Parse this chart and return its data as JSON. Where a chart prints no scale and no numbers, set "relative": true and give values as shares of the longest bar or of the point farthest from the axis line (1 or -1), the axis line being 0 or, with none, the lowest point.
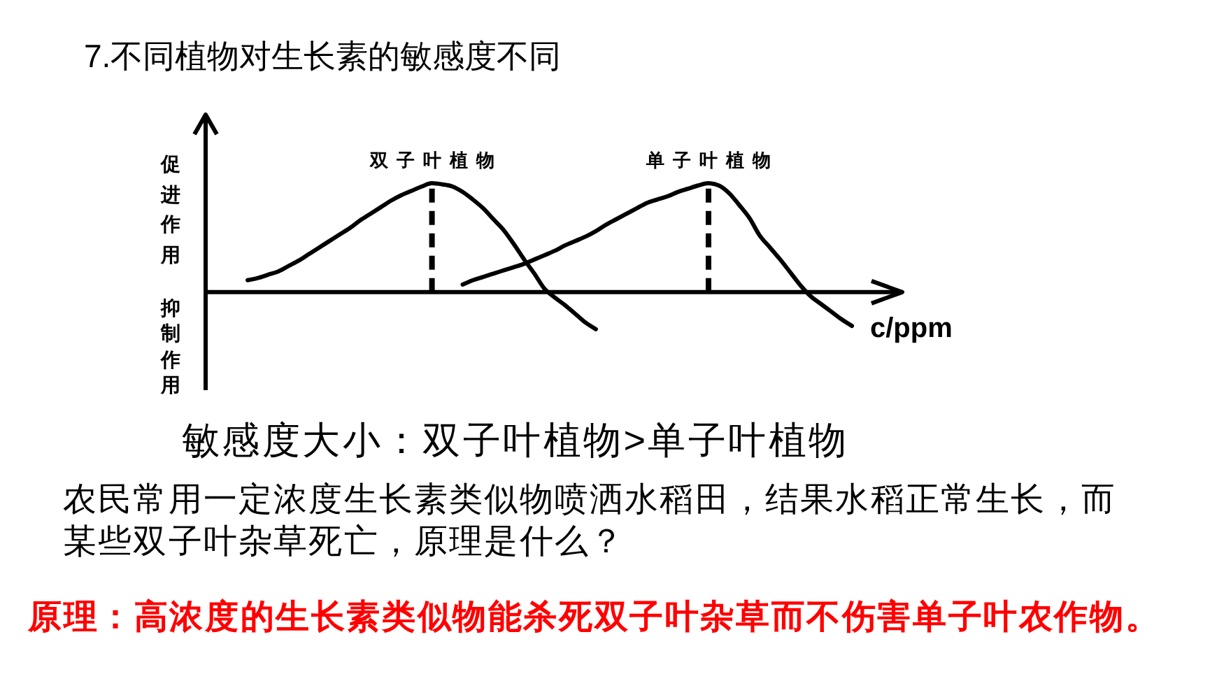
{
  "chart_data": {
    "type": "line",
    "title": "7.不同植物对生长素的敏感度不同",
    "xlabel": "c/ppm",
    "ylabel": "促进作用",
    "annotations": [
      "抑制作用",
      "敏感度大小：双子叶植物>单子叶植物",
      "农民常用一定浓度生长素类似物喷洒水稻田，结果水稻正常生长，而某些双子叶杂草死亡，原理是什么？",
      "原理：高浓度的生长素类似物能杀死双子叶杂草而不伤害单子叶农作物。"
    ],
    "categories": [
      null,
      null,
      null,
      null,
      null,
      null,
      null,
      null,
      null,
      null,
      null,
      null,
      null,
      null,
      null,
      null,
      null,
      null,
      null,
      null,
      null,
      null,
      null,
      null,
      null,
      null,
      null,
      null,
      null,
      null,
      null,
      null,
      null,
      null,
      null,
      null,
      null,
      null,
      null,
      null,
      null,
      null,
      null,
      null,
      null,
      null,
      null,
      null,
      null,
      null,
      null,
      null,
      null,
      null,
      null,
      null,
      null,
      null,
      null,
      null
    ],
    "relative": true,
    "series": [
      {
        "name": "双子叶植物",
        "color": "#000000",
        "values": [
          0.11,
          0.13,
          0.16,
          0.19,
          0.24,
          0.29,
          0.35,
          0.41,
          0.47,
          0.53,
          0.59,
          0.66,
          0.72,
          0.78,
          0.84,
          0.89,
          0.93,
          0.97,
          1,
          0.99,
          0.97,
          0.92,
          0.85,
          0.77,
          0.67,
          0.57,
          0.44,
          0.3,
          0.17,
          0.03,
          -0.05,
          -0.12,
          -0.2,
          -0.28,
          -0.34,
          null,
          null,
          null,
          null,
          null,
          null,
          null,
          null,
          null,
          null,
          null,
          null,
          null,
          null,
          null,
          null,
          null,
          null,
          null,
          null,
          null,
          null,
          null,
          null,
          null
        ]
      },
      {
        "name": "单子叶植物",
        "color": "#000000",
        "values": [
          null,
          null,
          null,
          null,
          null,
          null,
          null,
          null,
          null,
          null,
          null,
          null,
          null,
          null,
          null,
          null,
          null,
          null,
          null,
          null,
          null,
          0.07,
          0.11,
          0.14,
          0.17,
          0.2,
          0.23,
          0.26,
          0.3,
          0.34,
          0.38,
          0.43,
          0.47,
          0.51,
          0.56,
          0.62,
          0.67,
          0.72,
          0.77,
          0.82,
          0.85,
          0.88,
          0.92,
          0.95,
          0.98,
          1,
          0.98,
          0.91,
          0.8,
          0.68,
          0.52,
          0.41,
          0.3,
          0.18,
          0.06,
          -0.04,
          -0.11,
          -0.18,
          -0.25,
          -0.31
        ]
      }
    ],
    "legend": false,
    "marker": "none",
    "line_style": "solid",
    "tick_labels": false
  }
}
